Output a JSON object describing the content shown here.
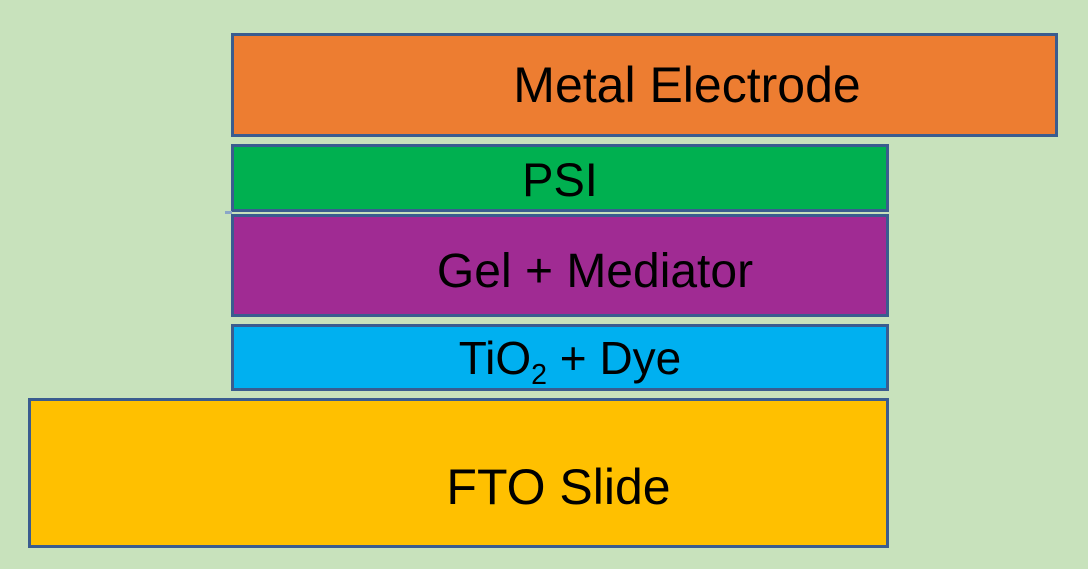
{
  "layers": {
    "metal_electrode": {
      "label": "Metal Electrode",
      "color": "#ed7d31"
    },
    "psi": {
      "label": "PSI",
      "color": "#00b050"
    },
    "gel_mediator": {
      "label": "Gel + Mediator",
      "color": "#a02b93"
    },
    "tio2_dye": {
      "prefix": "TiO",
      "subscript": "2",
      "suffix": " + Dye",
      "color": "#00b0f0"
    },
    "fto_slide": {
      "label": "FTO Slide",
      "color": "#ffc000"
    }
  },
  "border_color": "#3a5c8f",
  "background_color": "#c8e2bc"
}
